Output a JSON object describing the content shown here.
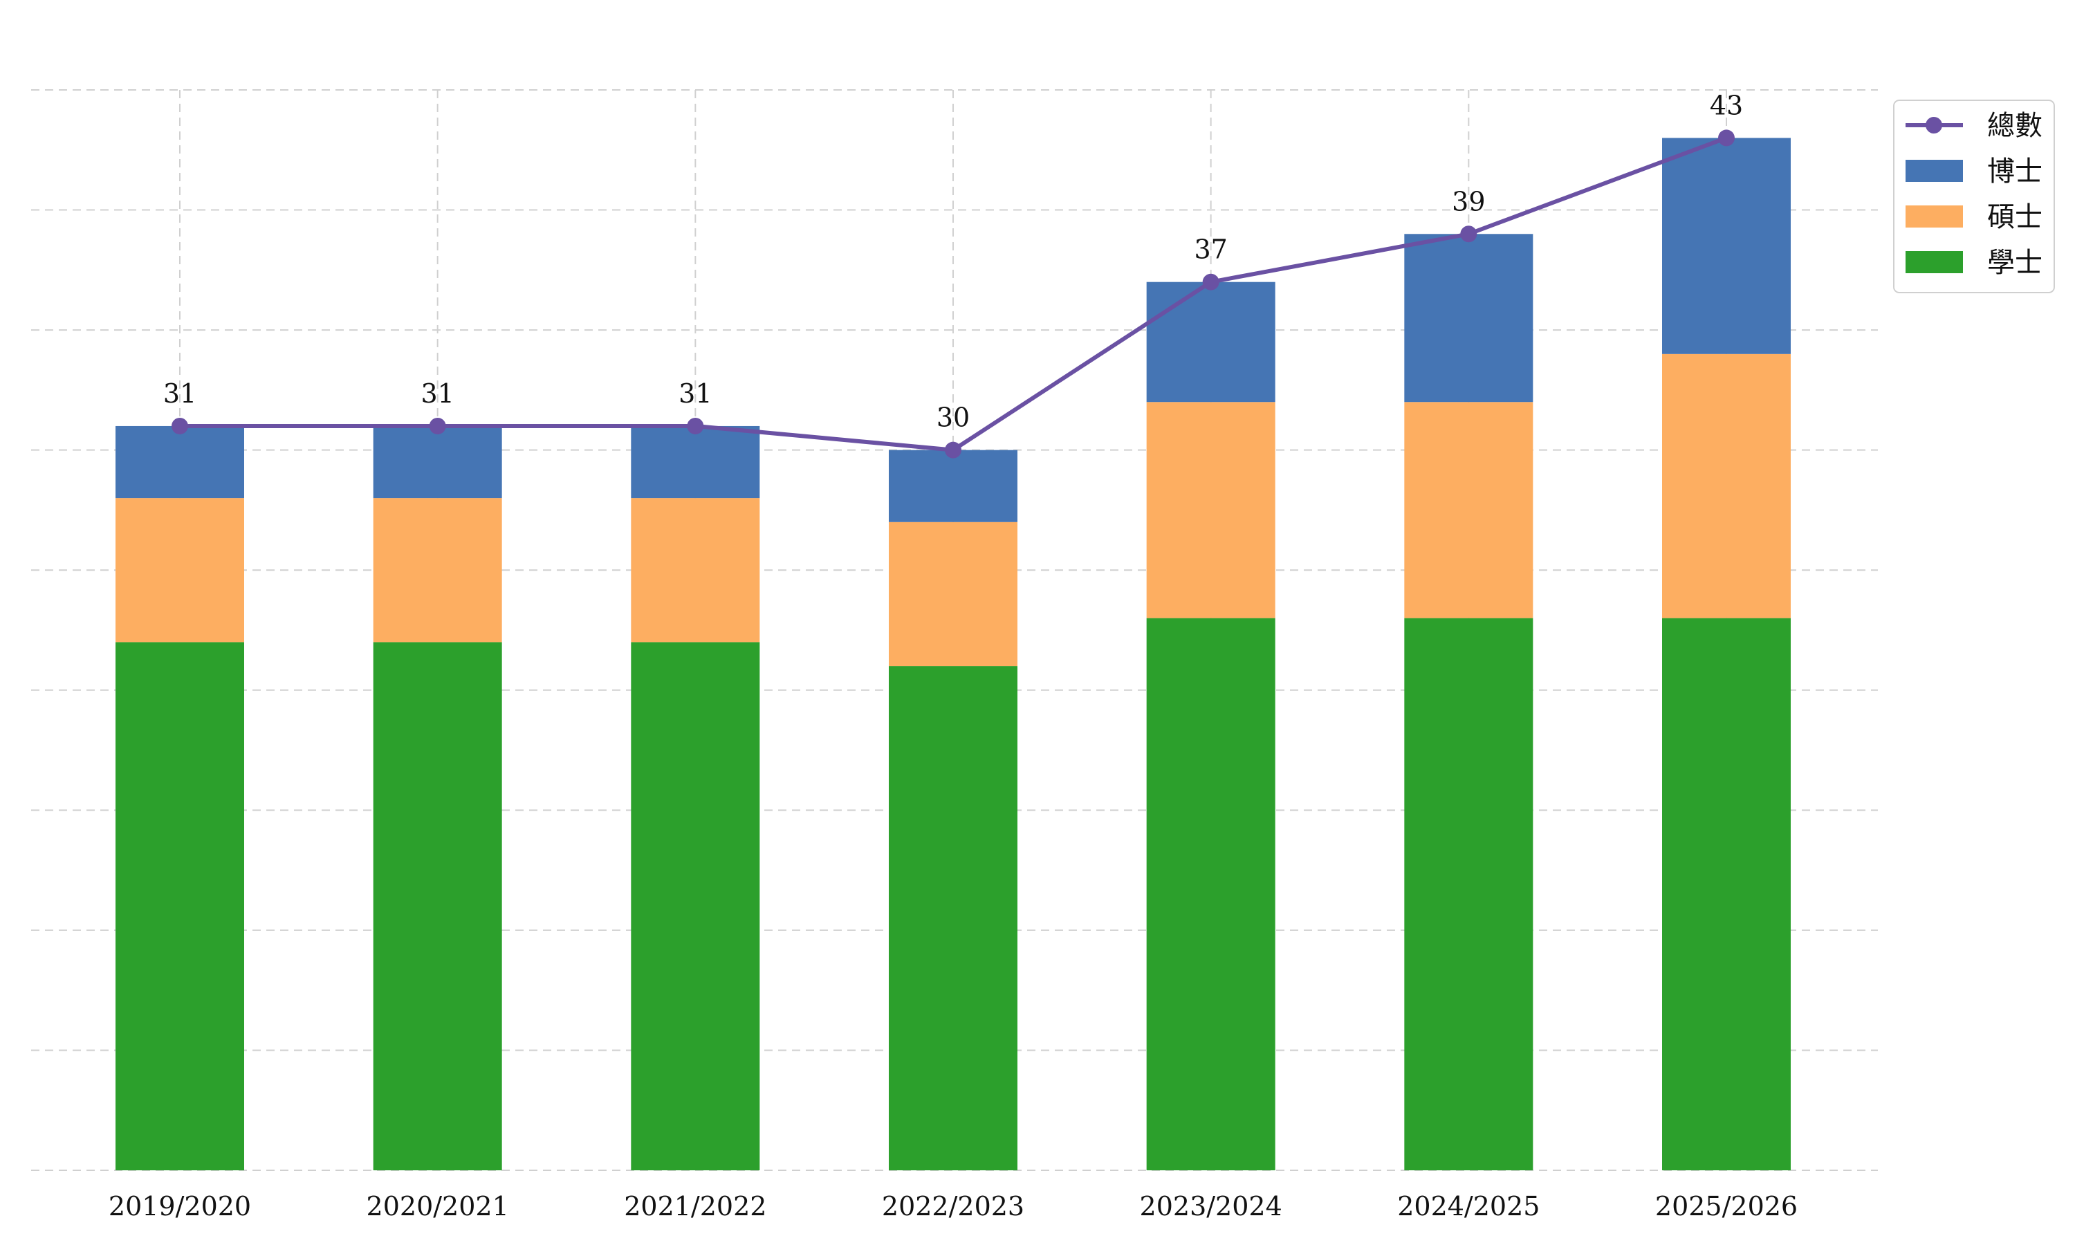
{
  "chart_data": {
    "type": "bar",
    "stacked": true,
    "title": "",
    "xlabel": "",
    "ylabel": "",
    "categories": [
      "2019/2020",
      "2020/2021",
      "2021/2022",
      "2022/2023",
      "2023/2024",
      "2024/2025",
      "2025/2026"
    ],
    "series": [
      {
        "name": "學士",
        "kind": "bar",
        "color": "#2ca02c",
        "values": [
          22,
          22,
          22,
          21,
          23,
          23,
          23
        ]
      },
      {
        "name": "碩士",
        "kind": "bar",
        "color": "#fdae61",
        "values": [
          6,
          6,
          6,
          6,
          9,
          9,
          11
        ]
      },
      {
        "name": "博士",
        "kind": "bar",
        "color": "#4575b4",
        "values": [
          3,
          3,
          3,
          3,
          5,
          7,
          9
        ]
      },
      {
        "name": "總數",
        "kind": "line",
        "color": "#6a51a3",
        "values": [
          31,
          31,
          31,
          30,
          37,
          39,
          43
        ],
        "data_labels": true
      }
    ],
    "legend_order": [
      "總數",
      "博士",
      "碩士",
      "學士"
    ],
    "legend_position": "top-right",
    "ylim": [
      0,
      45
    ],
    "grid": true,
    "y_tick_labels_visible": false
  }
}
